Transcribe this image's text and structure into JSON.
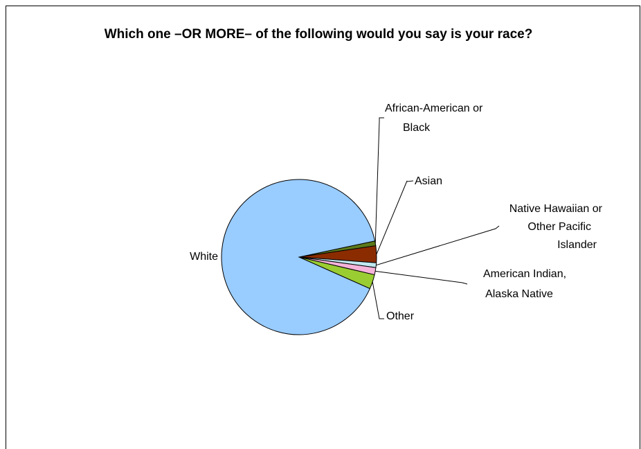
{
  "chart_data": {
    "type": "pie",
    "title": "Which one –OR MORE– of the following would you say is your race?",
    "categories": [
      "African-American or Black",
      "Asian",
      "Native Hawaiian or Other Pacific Islander",
      "American Indian, Alaska Native",
      "Other",
      "White"
    ],
    "values": [
      1.0,
      3.5,
      1.0,
      1.5,
      3.0,
      90.0
    ],
    "colors": [
      "#5c7a1a",
      "#8b2c00",
      "#c0e8f0",
      "#f5b3d9",
      "#9acd32",
      "#99ccff"
    ],
    "legend": "none",
    "data_labels": "category name with leader lines"
  }
}
